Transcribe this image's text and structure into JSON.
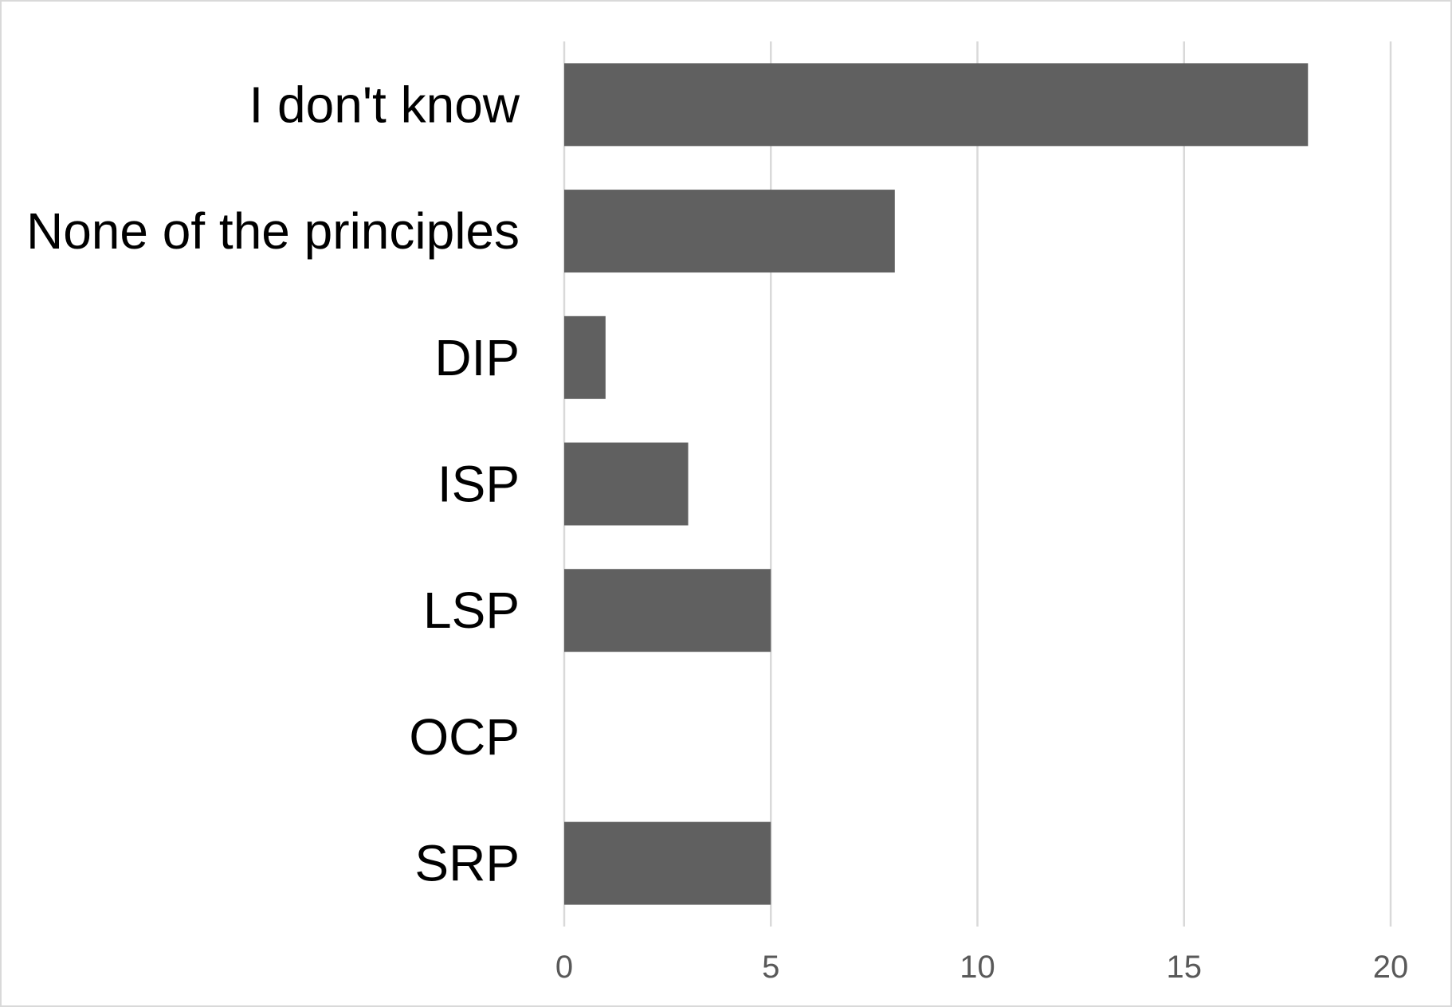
{
  "chart_data": {
    "type": "bar",
    "orientation": "horizontal",
    "categories": [
      "I don't know",
      "None of the principles",
      "DIP",
      "ISP",
      "LSP",
      "OCP",
      "SRP"
    ],
    "values": [
      18,
      8,
      1,
      3,
      5,
      0,
      5
    ],
    "xlim": [
      0,
      20
    ],
    "xticks": [
      "0",
      "5",
      "10",
      "15",
      "20"
    ],
    "title": "",
    "xlabel": "",
    "ylabel": "",
    "grid": "vertical",
    "legend": "none",
    "bar_color": "#606060",
    "grid_color": "#d9d9d9",
    "tick_label_color": "#595959",
    "category_label_color": "#000000"
  }
}
